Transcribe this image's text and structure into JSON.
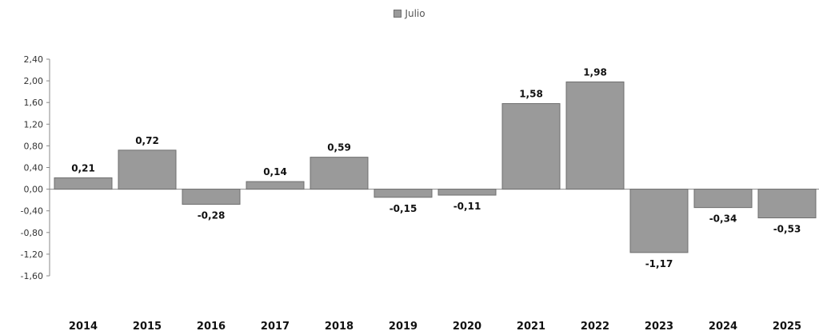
{
  "chart_data": {
    "type": "bar",
    "categories": [
      "2014",
      "2015",
      "2016",
      "2017",
      "2018",
      "2019",
      "2020",
      "2021",
      "2022",
      "2023",
      "2024",
      "2025"
    ],
    "series": [
      {
        "name": "Julio",
        "values": [
          0.21,
          0.72,
          -0.28,
          0.14,
          0.59,
          -0.15,
          -0.11,
          1.58,
          1.98,
          -1.17,
          -0.34,
          -0.53
        ],
        "value_labels": [
          "0,21",
          "0,72",
          "-0,28",
          "0,14",
          "0,59",
          "-0,15",
          "-0,11",
          "1,58",
          "1,98",
          "-1,17",
          "-0,34",
          "-0,53"
        ]
      }
    ],
    "yticks": [
      2.4,
      2.0,
      1.6,
      1.2,
      0.8,
      0.4,
      0.0,
      -0.4,
      -0.8,
      -1.2,
      -1.6
    ],
    "ytick_labels": [
      "2,40",
      "2,00",
      "1,60",
      "1,20",
      "0,80",
      "0,40",
      "0,00",
      "-0,40",
      "-0,80",
      "-1,20",
      "-1,60"
    ],
    "ylim": [
      -1.6,
      2.4
    ],
    "legend": {
      "label": "Julio",
      "placement": "top-center"
    },
    "grid": false,
    "colors": {
      "bar_fill": "#9a9a9a",
      "bar_stroke": "#6f6f6f",
      "axis": "#888888"
    }
  }
}
